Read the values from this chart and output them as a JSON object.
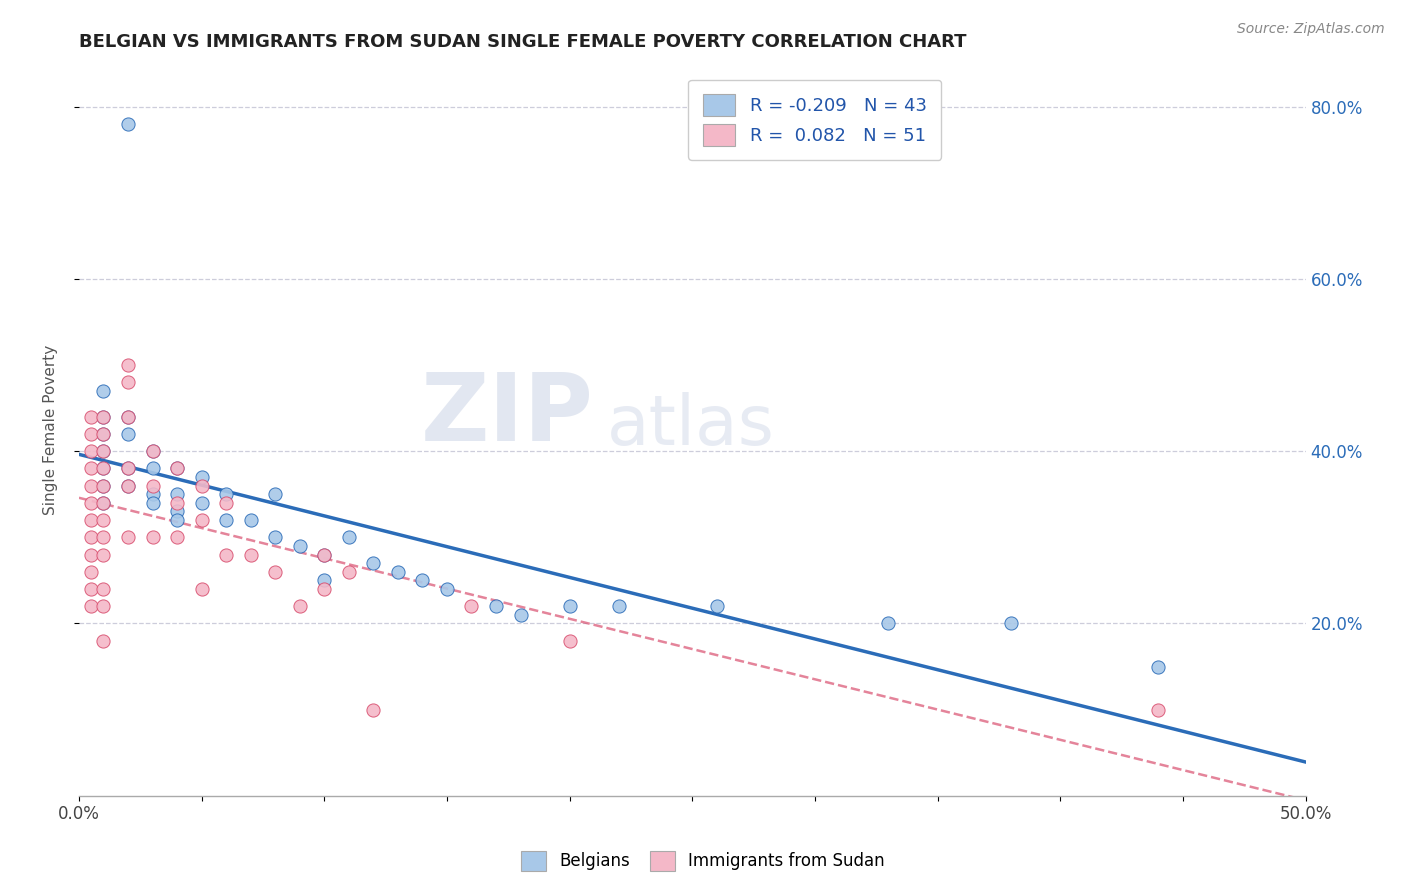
{
  "title": "BELGIAN VS IMMIGRANTS FROM SUDAN SINGLE FEMALE POVERTY CORRELATION CHART",
  "source": "Source: ZipAtlas.com",
  "ylabel": "Single Female Poverty",
  "xlim": [
    0.0,
    0.5
  ],
  "ylim": [
    0.0,
    0.85
  ],
  "belgian_color": "#a8c8e8",
  "sudan_color": "#f4b8c8",
  "belgian_line_color": "#2b6cb8",
  "sudan_line_color": "#d95070",
  "r_belgian": -0.209,
  "n_belgian": 43,
  "r_sudan": 0.082,
  "n_sudan": 51,
  "watermark_zip": "ZIP",
  "watermark_atlas": "atlas",
  "background_color": "#ffffff",
  "grid_color": "#c8c8d8",
  "title_color": "#222222",
  "axis_label_color": "#555555",
  "belgian_x": [
    0.02,
    0.01,
    0.01,
    0.01,
    0.01,
    0.01,
    0.01,
    0.01,
    0.02,
    0.02,
    0.02,
    0.02,
    0.03,
    0.03,
    0.03,
    0.03,
    0.04,
    0.04,
    0.04,
    0.04,
    0.05,
    0.05,
    0.06,
    0.06,
    0.07,
    0.08,
    0.08,
    0.09,
    0.1,
    0.1,
    0.11,
    0.12,
    0.13,
    0.14,
    0.15,
    0.17,
    0.18,
    0.2,
    0.22,
    0.26,
    0.33,
    0.38,
    0.44
  ],
  "belgian_y": [
    0.78,
    0.47,
    0.44,
    0.42,
    0.4,
    0.38,
    0.36,
    0.34,
    0.44,
    0.42,
    0.38,
    0.36,
    0.4,
    0.38,
    0.35,
    0.34,
    0.38,
    0.35,
    0.33,
    0.32,
    0.37,
    0.34,
    0.35,
    0.32,
    0.32,
    0.35,
    0.3,
    0.29,
    0.28,
    0.25,
    0.3,
    0.27,
    0.26,
    0.25,
    0.24,
    0.22,
    0.21,
    0.22,
    0.22,
    0.22,
    0.2,
    0.2,
    0.15
  ],
  "sudan_x": [
    0.005,
    0.005,
    0.005,
    0.005,
    0.005,
    0.005,
    0.005,
    0.005,
    0.005,
    0.005,
    0.005,
    0.005,
    0.01,
    0.01,
    0.01,
    0.01,
    0.01,
    0.01,
    0.01,
    0.01,
    0.01,
    0.01,
    0.01,
    0.01,
    0.02,
    0.02,
    0.02,
    0.02,
    0.02,
    0.02,
    0.03,
    0.03,
    0.03,
    0.04,
    0.04,
    0.04,
    0.05,
    0.05,
    0.05,
    0.06,
    0.06,
    0.07,
    0.08,
    0.09,
    0.1,
    0.1,
    0.11,
    0.12,
    0.16,
    0.2,
    0.44
  ],
  "sudan_y": [
    0.44,
    0.42,
    0.4,
    0.38,
    0.36,
    0.34,
    0.32,
    0.3,
    0.28,
    0.26,
    0.24,
    0.22,
    0.44,
    0.42,
    0.4,
    0.38,
    0.36,
    0.34,
    0.32,
    0.3,
    0.28,
    0.24,
    0.22,
    0.18,
    0.5,
    0.48,
    0.44,
    0.38,
    0.36,
    0.3,
    0.4,
    0.36,
    0.3,
    0.38,
    0.34,
    0.3,
    0.36,
    0.32,
    0.24,
    0.34,
    0.28,
    0.28,
    0.26,
    0.22,
    0.28,
    0.24,
    0.26,
    0.1,
    0.22,
    0.18,
    0.1
  ]
}
